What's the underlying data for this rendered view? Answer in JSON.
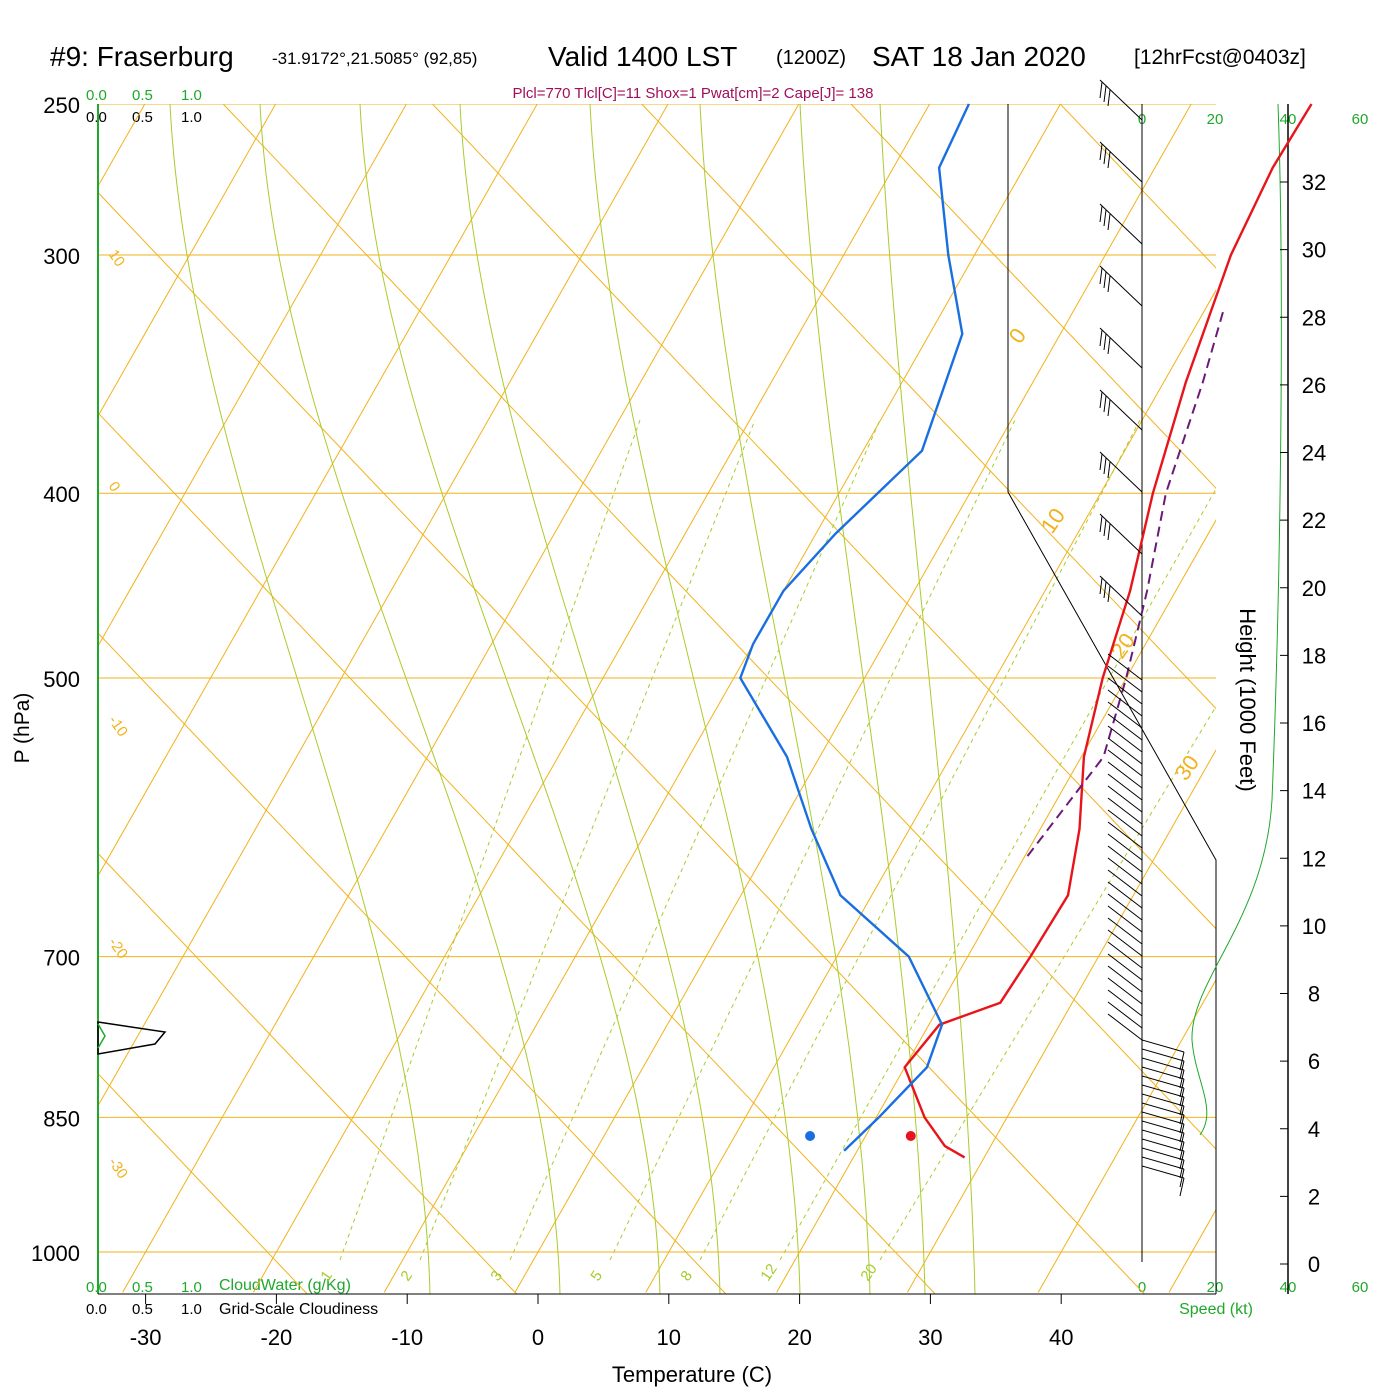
{
  "header": {
    "station": "#9: Fraserburg",
    "coords": "-31.9172°,21.5085° (92,85)",
    "valid": "Valid 1400 LST",
    "zulu": "(1200Z)",
    "date": "SAT 18 Jan 2020",
    "forecast": "[12hrFcst@0403z]",
    "indices": "Plcl=770 Tlcl[C]=11 Shox=1 Pwat[cm]=2 Cape[J]= 138"
  },
  "cloud_scale": {
    "top_green": [
      "0.0",
      "0.5",
      "1.0"
    ],
    "top_black": [
      "0.0",
      "0.5",
      "1.0"
    ],
    "bottom_green": [
      "0.0",
      "0.5",
      "1.0"
    ],
    "bottom_black": [
      "0.0",
      "0.5",
      "1.0"
    ],
    "cloudwater_label": "CloudWater (g/Kg)",
    "cloudiness_label": "Grid-Scale Cloudiness"
  },
  "speed_scale": {
    "top": [
      "0",
      "20",
      "40",
      "60"
    ],
    "bottom": [
      "0",
      "20",
      "40",
      "60"
    ],
    "label": "Speed (kt)"
  },
  "colors": {
    "temperature": "#e8141c",
    "dewpoint": "#1a6fe0",
    "parcel": "#6b1a78",
    "isotherm": "#f2b21c",
    "adiabat": "#a8cc2c",
    "green_text": "#1fa82b",
    "indices_text": "#a0105a"
  },
  "chart_data": {
    "type": "line",
    "subtype": "skew-t",
    "xlabel": "Temperature (C)",
    "ylabel": "P (hPa)",
    "y2label": "Height (1000 Feet)",
    "x_ticks": [
      -30,
      -20,
      -10,
      0,
      10,
      20,
      30,
      40
    ],
    "pressure_ticks": [
      250,
      300,
      400,
      500,
      700,
      850,
      1000
    ],
    "height_ticks": [
      0,
      2,
      4,
      6,
      8,
      10,
      12,
      14,
      16,
      18,
      20,
      22,
      24,
      26,
      28,
      30,
      32
    ],
    "isotherm_labels": [
      "10",
      "0",
      "-10",
      "-20",
      "-30",
      "0",
      "10",
      "20",
      "30"
    ],
    "mixing_ratio_labels": [
      "1",
      "2",
      "3",
      "5",
      "8",
      "12",
      "20"
    ],
    "series": [
      {
        "name": "temperature",
        "points": [
          [
            892,
            28.5
          ],
          [
            880,
            26.5
          ],
          [
            850,
            23.7
          ],
          [
            800,
            20.0
          ],
          [
            760,
            20.8
          ],
          [
            740,
            24.5
          ],
          [
            700,
            24.8
          ],
          [
            650,
            25.0
          ],
          [
            600,
            23.0
          ],
          [
            550,
            20.2
          ],
          [
            500,
            18.2
          ],
          [
            450,
            16.5
          ],
          [
            400,
            14.0
          ],
          [
            350,
            11.7
          ],
          [
            300,
            9.6
          ],
          [
            270,
            9.0
          ],
          [
            250,
            9.2
          ]
        ]
      },
      {
        "name": "dewpoint",
        "points": [
          [
            885,
            19.0
          ],
          [
            850,
            20.2
          ],
          [
            800,
            21.7
          ],
          [
            760,
            21.0
          ],
          [
            700,
            15.5
          ],
          [
            650,
            7.6
          ],
          [
            600,
            2.5
          ],
          [
            550,
            -2.5
          ],
          [
            500,
            -9.5
          ],
          [
            480,
            -10.0
          ],
          [
            450,
            -10.0
          ],
          [
            420,
            -8.5
          ],
          [
            380,
            -5.5
          ],
          [
            330,
            -7.5
          ],
          [
            300,
            -12.0
          ],
          [
            270,
            -16.5
          ],
          [
            250,
            -17.0
          ]
        ]
      },
      {
        "name": "parcel",
        "points": [
          [
            620,
            20.2
          ],
          [
            550,
            21.7
          ],
          [
            500,
            20.0
          ],
          [
            450,
            17.8
          ],
          [
            400,
            15.0
          ],
          [
            350,
            13.0
          ],
          [
            320,
            11.4
          ]
        ]
      }
    ],
    "surface_temperature": 28.5,
    "surface_dewpoint": 20.8
  }
}
